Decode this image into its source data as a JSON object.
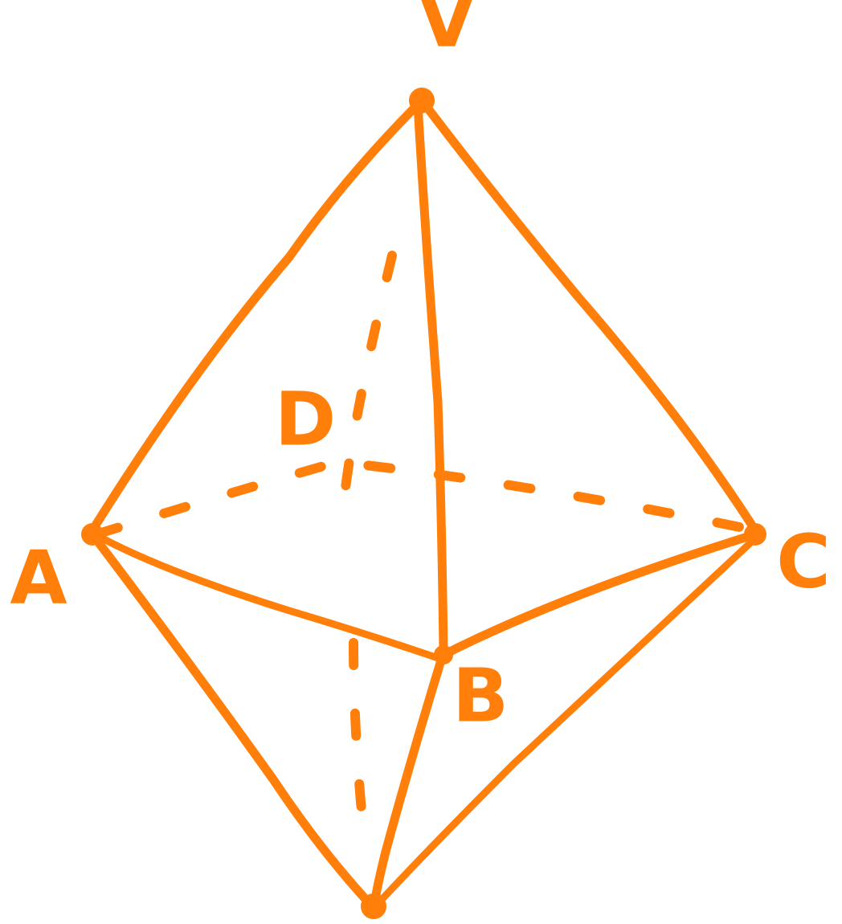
{
  "nodes": [
    {
      "label": "V"
    },
    {
      "label": "A"
    },
    {
      "label": "B"
    },
    {
      "label": "C"
    },
    {
      "label": "D"
    }
  ]
}
